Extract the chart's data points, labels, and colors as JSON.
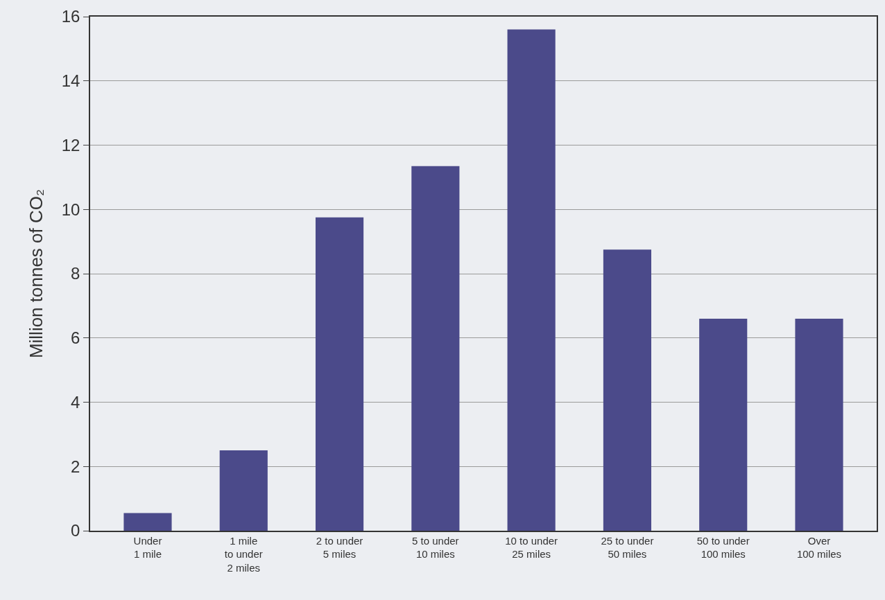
{
  "chart_data": {
    "type": "bar",
    "categories": [
      "Under\n1 mile",
      "1 mile\nto under\n2 miles",
      "2 to under\n5 miles",
      "5 to under\n10 miles",
      "10 to under\n25 miles",
      "25 to under\n50 miles",
      "50 to under\n100 miles",
      "Over\n100 miles"
    ],
    "values": [
      0.55,
      2.5,
      9.75,
      11.35,
      15.6,
      8.75,
      6.6,
      6.6
    ],
    "color": "#4b4a8a",
    "ylabel": "Million tonnes of CO₂",
    "ylim": [
      0,
      16
    ],
    "yticks": [
      0,
      2,
      4,
      6,
      8,
      10,
      12,
      14,
      16
    ],
    "grid": "y"
  }
}
